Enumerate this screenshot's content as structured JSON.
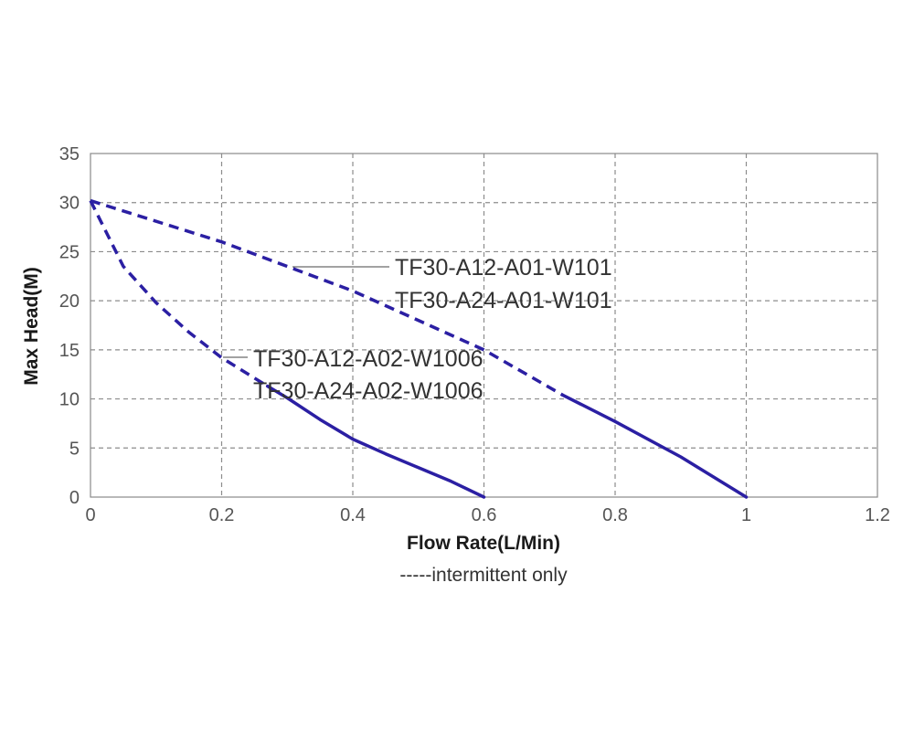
{
  "chart_data": {
    "type": "line",
    "xlabel": "Flow Rate(L/Min)",
    "ylabel": "Max Head(M)",
    "xlim": [
      0,
      1.2
    ],
    "ylim": [
      0,
      35
    ],
    "x_ticks": [
      0,
      0.2,
      0.4,
      0.6,
      0.8,
      1,
      1.2
    ],
    "x_tick_labels": [
      "0",
      "0.2",
      "0.4",
      "0.6",
      "0.8",
      "1",
      "1.2"
    ],
    "y_ticks": [
      0,
      5,
      10,
      15,
      20,
      25,
      30,
      35
    ],
    "y_tick_labels": [
      "0",
      "5",
      "10",
      "15",
      "20",
      "25",
      "30",
      "35"
    ],
    "grid": true,
    "grid_style": "dashed",
    "series": [
      {
        "curve": "upper",
        "labels": [
          "TF30-A12-A01-W101",
          "TF30-A24-A01-W101"
        ],
        "color": "#2b1fa3",
        "dashed_until_x": 0.72,
        "x": [
          0,
          0.2,
          0.4,
          0.6,
          0.72,
          0.8,
          0.9,
          1.0
        ],
        "y": [
          30.2,
          26.0,
          21.0,
          15.0,
          10.4,
          7.7,
          4.1,
          0
        ]
      },
      {
        "curve": "lower",
        "labels": [
          "TF30-A12-A02-W1006",
          "TF30-A24-A02-W1006"
        ],
        "color": "#2b1fa3",
        "dashed_until_x": 0.27,
        "x": [
          0,
          0.05,
          0.1,
          0.15,
          0.2,
          0.27,
          0.3,
          0.35,
          0.4,
          0.45,
          0.5,
          0.55,
          0.6
        ],
        "y": [
          30.2,
          23.5,
          19.8,
          16.8,
          14.2,
          11.3,
          10.1,
          7.9,
          5.9,
          4.4,
          3.0,
          1.6,
          0
        ]
      }
    ],
    "annotation": "-----intermittent only"
  }
}
